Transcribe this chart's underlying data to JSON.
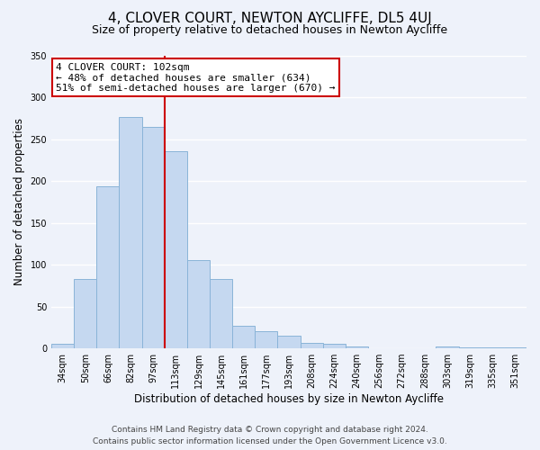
{
  "title": "4, CLOVER COURT, NEWTON AYCLIFFE, DL5 4UJ",
  "subtitle": "Size of property relative to detached houses in Newton Aycliffe",
  "xlabel": "Distribution of detached houses by size in Newton Aycliffe",
  "ylabel": "Number of detached properties",
  "bar_labels": [
    "34sqm",
    "50sqm",
    "66sqm",
    "82sqm",
    "97sqm",
    "113sqm",
    "129sqm",
    "145sqm",
    "161sqm",
    "177sqm",
    "193sqm",
    "208sqm",
    "224sqm",
    "240sqm",
    "256sqm",
    "272sqm",
    "288sqm",
    "303sqm",
    "319sqm",
    "335sqm",
    "351sqm"
  ],
  "bar_values": [
    6,
    83,
    194,
    276,
    265,
    235,
    105,
    83,
    27,
    20,
    15,
    7,
    5,
    2,
    0,
    0,
    0,
    2,
    1,
    1,
    1
  ],
  "bar_color": "#c5d8f0",
  "bar_edge_color": "#8ab4d8",
  "vline_x_index": 4.5,
  "vline_color": "#cc0000",
  "annotation_title": "4 CLOVER COURT: 102sqm",
  "annotation_line1": "← 48% of detached houses are smaller (634)",
  "annotation_line2": "51% of semi-detached houses are larger (670) →",
  "annotation_box_color": "#ffffff",
  "annotation_box_edge": "#cc0000",
  "ylim": [
    0,
    350
  ],
  "yticks": [
    0,
    50,
    100,
    150,
    200,
    250,
    300,
    350
  ],
  "footer_line1": "Contains HM Land Registry data © Crown copyright and database right 2024.",
  "footer_line2": "Contains public sector information licensed under the Open Government Licence v3.0.",
  "background_color": "#eef2fa",
  "grid_color": "#ffffff",
  "title_fontsize": 11,
  "subtitle_fontsize": 9,
  "axis_label_fontsize": 8.5,
  "tick_label_fontsize": 7,
  "annotation_fontsize": 8,
  "footer_fontsize": 6.5
}
